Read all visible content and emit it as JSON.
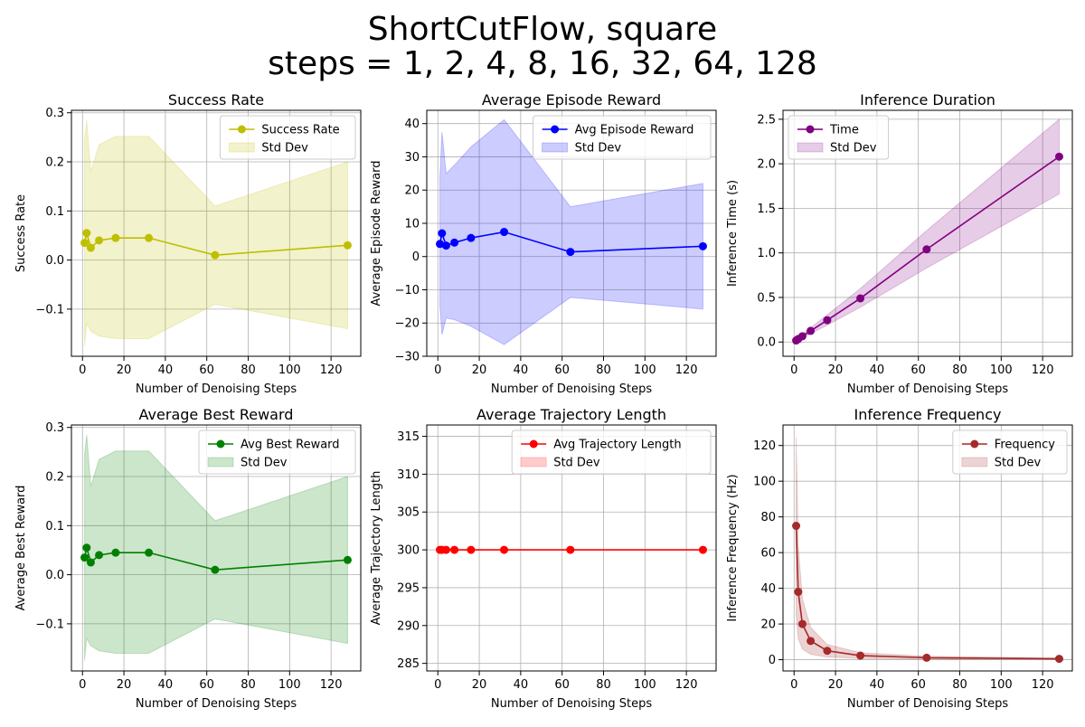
{
  "figure": {
    "title_line1": "ShortCutFlow, square",
    "title_line2": "steps = 1, 2, 4, 8, 16, 32, 64, 128"
  },
  "chart_data": [
    {
      "type": "line",
      "title": "Success Rate",
      "xlabel": "Number of Denoising Steps",
      "ylabel": "Success Rate",
      "xlim": [
        -5.35,
        134.35
      ],
      "ylim": [
        -0.196,
        0.305
      ],
      "xticks": [
        0,
        20,
        40,
        60,
        80,
        100,
        120
      ],
      "yticks": [
        -0.1,
        0.0,
        0.1,
        0.2,
        0.3
      ],
      "ytick_labels": [
        "−0.1",
        "0.0",
        "0.1",
        "0.2",
        "0.3"
      ],
      "grid": true,
      "legend_position": "upper right",
      "x": [
        1,
        2,
        4,
        8,
        16,
        32,
        64,
        128
      ],
      "series": [
        {
          "name": "Success Rate",
          "values": [
            0.035,
            0.055,
            0.025,
            0.04,
            0.045,
            0.045,
            0.01,
            0.03
          ],
          "std_lower": [
            -0.175,
            -0.13,
            -0.145,
            -0.155,
            -0.16,
            -0.16,
            -0.09,
            -0.14
          ],
          "std_upper": [
            0.245,
            0.285,
            0.18,
            0.235,
            0.252,
            0.252,
            0.11,
            0.2
          ],
          "std_name": "Std Dev",
          "color": "#bfbf00",
          "fill_color": "#bfbf00"
        }
      ]
    },
    {
      "type": "line",
      "title": "Average Episode Reward",
      "xlabel": "Number of Denoising Steps",
      "ylabel": "Average Episode Reward",
      "xlim": [
        -5.35,
        134.35
      ],
      "ylim": [
        -30,
        44
      ],
      "xticks": [
        0,
        20,
        40,
        60,
        80,
        100,
        120
      ],
      "yticks": [
        -30,
        -20,
        -10,
        0,
        10,
        20,
        30,
        40
      ],
      "ytick_labels": [
        "−30",
        "−20",
        "−10",
        "0",
        "10",
        "20",
        "30",
        "40"
      ],
      "grid": true,
      "legend_position": "upper right",
      "x": [
        1,
        2,
        4,
        8,
        16,
        32,
        64,
        128
      ],
      "series": [
        {
          "name": "Avg Episode Reward",
          "values": [
            3.8,
            7.0,
            3.3,
            4.2,
            5.6,
            7.4,
            1.4,
            3.1
          ],
          "std_lower": [
            -15,
            -23.5,
            -18.5,
            -19,
            -21,
            -26.5,
            -12.3,
            -15.8
          ],
          "std_upper": [
            24,
            37.5,
            25,
            27.5,
            33,
            41.2,
            15,
            22
          ],
          "std_name": "Std Dev",
          "color": "#0000ff",
          "fill_color": "#0000ff"
        }
      ]
    },
    {
      "type": "line",
      "title": "Inference Duration",
      "xlabel": "Number of Denoising Steps",
      "ylabel": "Inference Time (s)",
      "xlim": [
        -5.35,
        134.35
      ],
      "ylim": [
        -0.16,
        2.6
      ],
      "xticks": [
        0,
        20,
        40,
        60,
        80,
        100,
        120
      ],
      "yticks": [
        0.0,
        0.5,
        1.0,
        1.5,
        2.0,
        2.5
      ],
      "ytick_labels": [
        "0.0",
        "0.5",
        "1.0",
        "1.5",
        "2.0",
        "2.5"
      ],
      "grid": true,
      "legend_position": "upper left",
      "x": [
        1,
        2,
        4,
        8,
        16,
        32,
        64,
        128
      ],
      "series": [
        {
          "name": "Time",
          "values": [
            0.017,
            0.034,
            0.065,
            0.125,
            0.245,
            0.49,
            1.04,
            2.08
          ],
          "std_lower": [
            0.012,
            0.024,
            0.048,
            0.095,
            0.19,
            0.39,
            0.83,
            1.66
          ],
          "std_upper": [
            0.022,
            0.044,
            0.085,
            0.16,
            0.305,
            0.6,
            1.25,
            2.5
          ],
          "std_name": "Std Dev",
          "color": "#800080",
          "fill_color": "#800080"
        }
      ]
    },
    {
      "type": "line",
      "title": "Average Best Reward",
      "xlabel": "Number of Denoising Steps",
      "ylabel": "Average Best Reward",
      "xlim": [
        -5.35,
        134.35
      ],
      "ylim": [
        -0.196,
        0.305
      ],
      "xticks": [
        0,
        20,
        40,
        60,
        80,
        100,
        120
      ],
      "yticks": [
        -0.1,
        0.0,
        0.1,
        0.2,
        0.3
      ],
      "ytick_labels": [
        "−0.1",
        "0.0",
        "0.1",
        "0.2",
        "0.3"
      ],
      "grid": true,
      "legend_position": "upper right",
      "x": [
        1,
        2,
        4,
        8,
        16,
        32,
        64,
        128
      ],
      "series": [
        {
          "name": "Avg Best Reward",
          "values": [
            0.035,
            0.055,
            0.025,
            0.04,
            0.045,
            0.045,
            0.01,
            0.03
          ],
          "std_lower": [
            -0.175,
            -0.13,
            -0.145,
            -0.155,
            -0.16,
            -0.16,
            -0.09,
            -0.14
          ],
          "std_upper": [
            0.245,
            0.285,
            0.18,
            0.235,
            0.252,
            0.252,
            0.11,
            0.2
          ],
          "std_name": "Std Dev",
          "color": "#008000",
          "fill_color": "#008000"
        }
      ]
    },
    {
      "type": "line",
      "title": "Average Trajectory Length",
      "xlabel": "Number of Denoising Steps",
      "ylabel": "Average Trajectory Length",
      "xlim": [
        -5.35,
        134.35
      ],
      "ylim": [
        284,
        316.5
      ],
      "xticks": [
        0,
        20,
        40,
        60,
        80,
        100,
        120
      ],
      "yticks": [
        285,
        290,
        295,
        300,
        305,
        310,
        315
      ],
      "ytick_labels": [
        "285",
        "290",
        "295",
        "300",
        "305",
        "310",
        "315"
      ],
      "grid": true,
      "legend_position": "upper right",
      "x": [
        1,
        2,
        4,
        8,
        16,
        32,
        64,
        128
      ],
      "series": [
        {
          "name": "Avg Trajectory Length",
          "values": [
            300,
            300,
            300,
            300,
            300,
            300,
            300,
            300
          ],
          "std_lower": [
            300,
            300,
            300,
            300,
            300,
            300,
            300,
            300
          ],
          "std_upper": [
            300,
            300,
            300,
            300,
            300,
            300,
            300,
            300
          ],
          "std_name": "Std Dev",
          "color": "#ff0000",
          "fill_color": "#ff0000"
        }
      ]
    },
    {
      "type": "line",
      "title": "Inference Frequency",
      "xlabel": "Number of Denoising Steps",
      "ylabel": "Inference Frequency (Hz)",
      "xlim": [
        -5.35,
        134.35
      ],
      "ylim": [
        -6.3,
        131.5
      ],
      "xticks": [
        0,
        20,
        40,
        60,
        80,
        100,
        120
      ],
      "yticks": [
        0,
        20,
        40,
        60,
        80,
        100,
        120
      ],
      "ytick_labels": [
        "0",
        "20",
        "40",
        "60",
        "80",
        "100",
        "120"
      ],
      "grid": true,
      "legend_position": "upper right",
      "x": [
        1,
        2,
        4,
        8,
        16,
        32,
        64,
        128
      ],
      "series": [
        {
          "name": "Frequency",
          "values": [
            75,
            38,
            20,
            10.5,
            5,
            2.3,
            1.1,
            0.5
          ],
          "std_lower": [
            25,
            12,
            6,
            3,
            1.5,
            0.7,
            0.3,
            0.1
          ],
          "std_upper": [
            125,
            64,
            34,
            18,
            8.5,
            3.9,
            1.9,
            0.9
          ],
          "std_name": "Std Dev",
          "color": "#a52a2a",
          "fill_color": "#a52a2a"
        }
      ]
    }
  ]
}
